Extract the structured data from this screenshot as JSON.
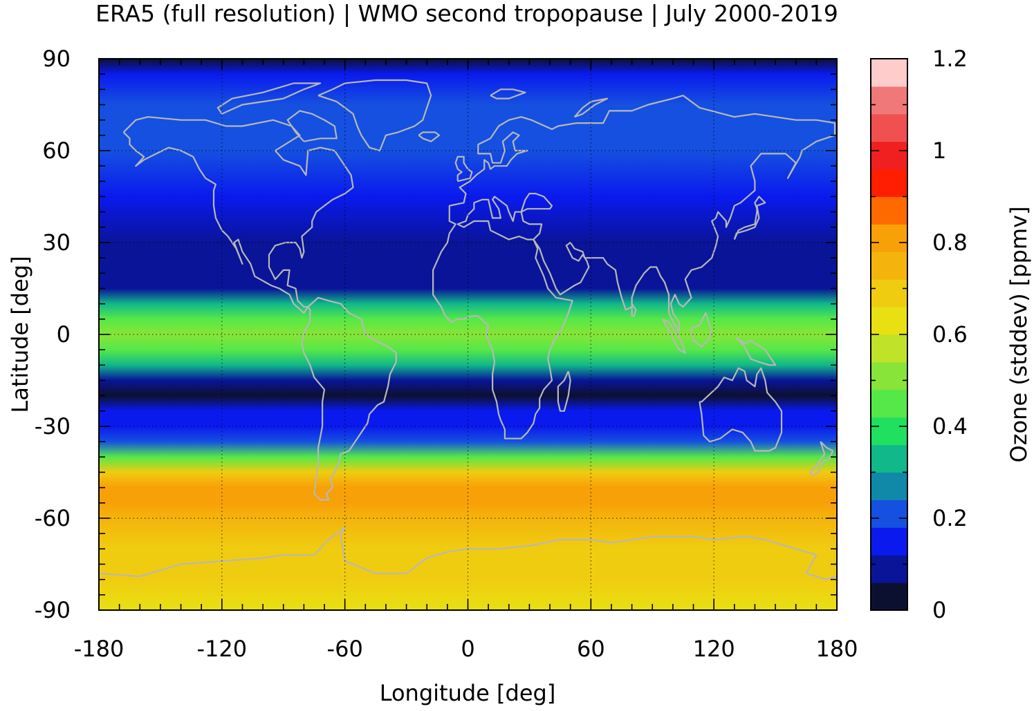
{
  "chart_data": {
    "type": "heatmap",
    "title": "ERA5 (full resolution) | WMO second tropopause | July 2000-2019",
    "xlabel": "Longitude [deg]",
    "ylabel": "Latitude [deg]",
    "colorbar_label": "Ozone (stddev) [ppmv]",
    "xlim": [
      -180,
      180
    ],
    "ylim": [
      -90,
      90
    ],
    "xticks": [
      "-180",
      "-120",
      "-60",
      "0",
      "60",
      "120",
      "180"
    ],
    "yticks": [
      "90",
      "60",
      "30",
      "0",
      "-30",
      "-60",
      "-90"
    ],
    "x_tick_values": [
      -180,
      -120,
      -60,
      0,
      60,
      120,
      180
    ],
    "y_tick_values": [
      90,
      60,
      30,
      0,
      -30,
      -60,
      -90
    ],
    "colorbar_range": [
      0,
      1.2
    ],
    "colorbar_ticks": [
      "1.2",
      "1",
      "0.8",
      "0.6",
      "0.4",
      "0.2",
      "0"
    ],
    "colorbar_tick_values": [
      1.2,
      1.0,
      0.8,
      0.6,
      0.4,
      0.2,
      0.0
    ],
    "colorbar_levels": [
      "#0c1030",
      "#0a1499",
      "#0a1aee",
      "#1550e0",
      "#1088a8",
      "#10b88a",
      "#20e060",
      "#55e848",
      "#88e438",
      "#c0e228",
      "#e8e012",
      "#f0cc10",
      "#f4b40c",
      "#f8a008",
      "#ff6a00",
      "#ff1e00",
      "#f02020",
      "#f05050",
      "#f07878",
      "#ffcccc"
    ],
    "grid": "dotted at tick positions",
    "zonal_profile": [
      {
        "lat": 90,
        "value": 0.05
      },
      {
        "lat": 85,
        "value": 0.14
      },
      {
        "lat": 75,
        "value": 0.18
      },
      {
        "lat": 60,
        "value": 0.18
      },
      {
        "lat": 45,
        "value": 0.14
      },
      {
        "lat": 30,
        "value": 0.1
      },
      {
        "lat": 20,
        "value": 0.06
      },
      {
        "lat": 15,
        "value": 0.1
      },
      {
        "lat": 10,
        "value": 0.35
      },
      {
        "lat": 5,
        "value": 0.45
      },
      {
        "lat": 0,
        "value": 0.5
      },
      {
        "lat": -5,
        "value": 0.45
      },
      {
        "lat": -10,
        "value": 0.3
      },
      {
        "lat": -15,
        "value": 0.1
      },
      {
        "lat": -20,
        "value": 0.05
      },
      {
        "lat": -25,
        "value": 0.12
      },
      {
        "lat": -30,
        "value": 0.16
      },
      {
        "lat": -35,
        "value": 0.22
      },
      {
        "lat": -40,
        "value": 0.45
      },
      {
        "lat": -45,
        "value": 0.68
      },
      {
        "lat": -50,
        "value": 0.8
      },
      {
        "lat": -55,
        "value": 0.78
      },
      {
        "lat": -60,
        "value": 0.74
      },
      {
        "lat": -70,
        "value": 0.7
      },
      {
        "lat": -80,
        "value": 0.68
      },
      {
        "lat": -90,
        "value": 0.62
      }
    ],
    "overlay": "coastlines (light gray)"
  }
}
